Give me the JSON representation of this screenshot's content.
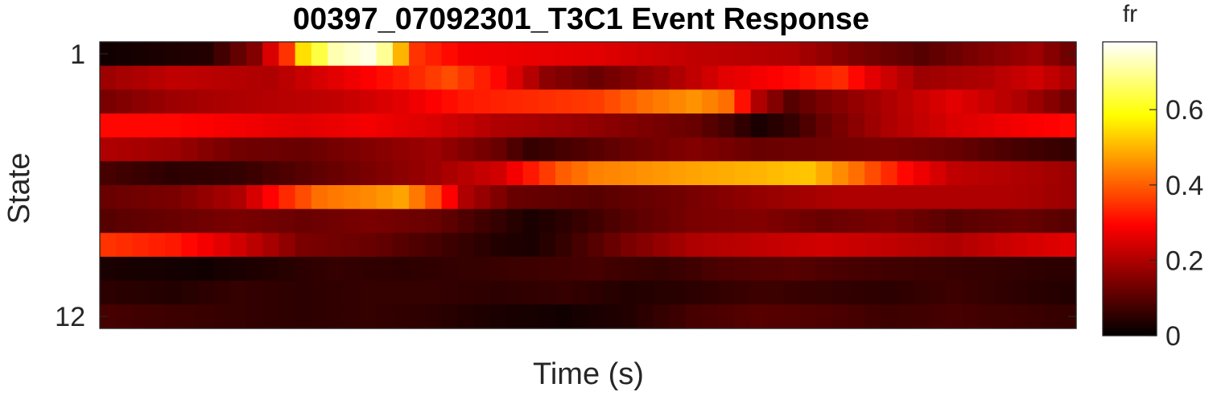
{
  "chart_data": {
    "type": "heatmap",
    "title": "00397_07092301_T3C1 Event Response",
    "xlabel": "Time (s)",
    "ylabel": "State",
    "y_tick_labels": [
      {
        "row": 1,
        "label": "1"
      },
      {
        "row": 12,
        "label": "12"
      }
    ],
    "colorbar": {
      "label": "fr",
      "colormap": "hot",
      "clim": [
        0,
        0.78
      ],
      "ticks": [
        {
          "value": 0,
          "label": "0"
        },
        {
          "value": 0.2,
          "label": "0.2"
        },
        {
          "value": 0.4,
          "label": "0.4"
        },
        {
          "value": 0.6,
          "label": "0.6"
        }
      ]
    },
    "rows": 12,
    "columns": 60,
    "row_profiles": [
      [
        [
          0,
          0.02
        ],
        [
          6,
          0.04
        ],
        [
          9,
          0.15
        ],
        [
          11,
          0.35
        ],
        [
          12,
          0.55
        ],
        [
          14,
          0.72
        ],
        [
          16,
          0.76
        ],
        [
          17,
          0.7
        ],
        [
          18,
          0.5
        ],
        [
          19,
          0.35
        ],
        [
          22,
          0.28
        ],
        [
          30,
          0.26
        ],
        [
          36,
          0.22
        ],
        [
          42,
          0.2
        ],
        [
          46,
          0.14
        ],
        [
          50,
          0.1
        ],
        [
          54,
          0.15
        ],
        [
          57,
          0.18
        ],
        [
          59,
          0.13
        ]
      ],
      [
        [
          0,
          0.18
        ],
        [
          4,
          0.22
        ],
        [
          10,
          0.2
        ],
        [
          14,
          0.26
        ],
        [
          18,
          0.32
        ],
        [
          21,
          0.38
        ],
        [
          24,
          0.3
        ],
        [
          27,
          0.16
        ],
        [
          30,
          0.12
        ],
        [
          34,
          0.18
        ],
        [
          38,
          0.26
        ],
        [
          42,
          0.3
        ],
        [
          45,
          0.34
        ],
        [
          47,
          0.26
        ],
        [
          50,
          0.18
        ],
        [
          54,
          0.2
        ],
        [
          57,
          0.24
        ],
        [
          59,
          0.2
        ]
      ],
      [
        [
          0,
          0.14
        ],
        [
          4,
          0.18
        ],
        [
          8,
          0.2
        ],
        [
          14,
          0.22
        ],
        [
          18,
          0.26
        ],
        [
          22,
          0.32
        ],
        [
          26,
          0.34
        ],
        [
          30,
          0.36
        ],
        [
          33,
          0.42
        ],
        [
          36,
          0.46
        ],
        [
          38,
          0.42
        ],
        [
          40,
          0.2
        ],
        [
          42,
          0.1
        ],
        [
          44,
          0.14
        ],
        [
          48,
          0.2
        ],
        [
          52,
          0.26
        ],
        [
          56,
          0.2
        ],
        [
          59,
          0.13
        ]
      ],
      [
        [
          0,
          0.3
        ],
        [
          4,
          0.3
        ],
        [
          8,
          0.28
        ],
        [
          12,
          0.26
        ],
        [
          16,
          0.28
        ],
        [
          20,
          0.25
        ],
        [
          24,
          0.2
        ],
        [
          28,
          0.18
        ],
        [
          32,
          0.15
        ],
        [
          36,
          0.12
        ],
        [
          38,
          0.08
        ],
        [
          40,
          0.03
        ],
        [
          42,
          0.06
        ],
        [
          44,
          0.12
        ],
        [
          48,
          0.2
        ],
        [
          52,
          0.25
        ],
        [
          56,
          0.28
        ],
        [
          59,
          0.3
        ]
      ],
      [
        [
          0,
          0.2
        ],
        [
          4,
          0.18
        ],
        [
          8,
          0.13
        ],
        [
          12,
          0.12
        ],
        [
          16,
          0.15
        ],
        [
          20,
          0.18
        ],
        [
          24,
          0.12
        ],
        [
          26,
          0.06
        ],
        [
          28,
          0.08
        ],
        [
          32,
          0.12
        ],
        [
          36,
          0.15
        ],
        [
          40,
          0.12
        ],
        [
          44,
          0.13
        ],
        [
          48,
          0.14
        ],
        [
          52,
          0.12
        ],
        [
          56,
          0.08
        ],
        [
          59,
          0.06
        ]
      ],
      [
        [
          0,
          0.08
        ],
        [
          4,
          0.05
        ],
        [
          8,
          0.06
        ],
        [
          12,
          0.1
        ],
        [
          16,
          0.14
        ],
        [
          20,
          0.18
        ],
        [
          24,
          0.24
        ],
        [
          26,
          0.32
        ],
        [
          28,
          0.4
        ],
        [
          30,
          0.44
        ],
        [
          33,
          0.46
        ],
        [
          36,
          0.48
        ],
        [
          40,
          0.5
        ],
        [
          43,
          0.52
        ],
        [
          46,
          0.42
        ],
        [
          49,
          0.3
        ],
        [
          52,
          0.22
        ],
        [
          56,
          0.2
        ],
        [
          59,
          0.18
        ]
      ],
      [
        [
          0,
          0.12
        ],
        [
          4,
          0.14
        ],
        [
          8,
          0.2
        ],
        [
          11,
          0.34
        ],
        [
          13,
          0.42
        ],
        [
          16,
          0.45
        ],
        [
          18,
          0.48
        ],
        [
          20,
          0.38
        ],
        [
          22,
          0.2
        ],
        [
          25,
          0.12
        ],
        [
          30,
          0.1
        ],
        [
          35,
          0.13
        ],
        [
          40,
          0.17
        ],
        [
          45,
          0.2
        ],
        [
          50,
          0.2
        ],
        [
          55,
          0.2
        ],
        [
          59,
          0.18
        ]
      ],
      [
        [
          0,
          0.1
        ],
        [
          4,
          0.12
        ],
        [
          8,
          0.14
        ],
        [
          12,
          0.12
        ],
        [
          16,
          0.14
        ],
        [
          20,
          0.12
        ],
        [
          24,
          0.06
        ],
        [
          26,
          0.03
        ],
        [
          28,
          0.05
        ],
        [
          32,
          0.1
        ],
        [
          36,
          0.14
        ],
        [
          40,
          0.15
        ],
        [
          44,
          0.12
        ],
        [
          48,
          0.14
        ],
        [
          52,
          0.1
        ],
        [
          56,
          0.12
        ],
        [
          59,
          0.1
        ]
      ],
      [
        [
          0,
          0.35
        ],
        [
          4,
          0.32
        ],
        [
          8,
          0.24
        ],
        [
          12,
          0.14
        ],
        [
          16,
          0.12
        ],
        [
          20,
          0.08
        ],
        [
          24,
          0.04
        ],
        [
          26,
          0.03
        ],
        [
          28,
          0.06
        ],
        [
          32,
          0.14
        ],
        [
          36,
          0.2
        ],
        [
          40,
          0.22
        ],
        [
          44,
          0.24
        ],
        [
          48,
          0.22
        ],
        [
          52,
          0.2
        ],
        [
          56,
          0.24
        ],
        [
          59,
          0.26
        ]
      ],
      [
        [
          0,
          0.03
        ],
        [
          6,
          0.02
        ],
        [
          10,
          0.04
        ],
        [
          14,
          0.06
        ],
        [
          18,
          0.05
        ],
        [
          22,
          0.06
        ],
        [
          26,
          0.07
        ],
        [
          30,
          0.08
        ],
        [
          34,
          0.06
        ],
        [
          38,
          0.09
        ],
        [
          42,
          0.1
        ],
        [
          46,
          0.08
        ],
        [
          50,
          0.07
        ],
        [
          54,
          0.06
        ],
        [
          59,
          0.05
        ]
      ],
      [
        [
          0,
          0.05
        ],
        [
          4,
          0.04
        ],
        [
          8,
          0.06
        ],
        [
          12,
          0.05
        ],
        [
          16,
          0.06
        ],
        [
          20,
          0.06
        ],
        [
          24,
          0.05
        ],
        [
          28,
          0.06
        ],
        [
          32,
          0.04
        ],
        [
          36,
          0.05
        ],
        [
          40,
          0.07
        ],
        [
          44,
          0.06
        ],
        [
          48,
          0.05
        ],
        [
          52,
          0.07
        ],
        [
          56,
          0.05
        ],
        [
          59,
          0.04
        ]
      ],
      [
        [
          0,
          0.08
        ],
        [
          4,
          0.07
        ],
        [
          8,
          0.06
        ],
        [
          12,
          0.05
        ],
        [
          16,
          0.06
        ],
        [
          20,
          0.05
        ],
        [
          24,
          0.03
        ],
        [
          28,
          0.02
        ],
        [
          32,
          0.04
        ],
        [
          36,
          0.08
        ],
        [
          40,
          0.1
        ],
        [
          44,
          0.09
        ],
        [
          48,
          0.07
        ],
        [
          52,
          0.08
        ],
        [
          56,
          0.07
        ],
        [
          59,
          0.06
        ]
      ]
    ]
  }
}
